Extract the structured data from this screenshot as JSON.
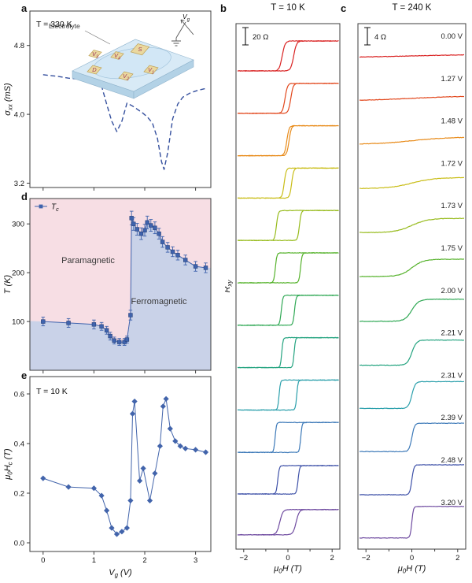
{
  "panel_letters": {
    "a": "a",
    "b": "b",
    "c": "c",
    "d": "d",
    "e": "e"
  },
  "chart_data": [
    {
      "id": "a",
      "type": "line",
      "panel": "a",
      "annotation": "T = 330 K",
      "ylabel": "σ_{xx} (mS)",
      "xlabel": "",
      "xlim": [
        -0.26,
        3.3
      ],
      "ylim": [
        3.15,
        5.2
      ],
      "xticks": [
        0,
        1,
        2,
        3
      ],
      "yticks": [
        [
          3.2,
          "3.2"
        ],
        [
          4,
          "4.0"
        ],
        [
          4.8,
          "4.8"
        ]
      ],
      "line_color": "#35509e",
      "line_style": "dashed",
      "x": [
        0,
        0.15,
        0.3,
        0.5,
        0.7,
        0.9,
        1.05,
        1.15,
        1.25,
        1.35,
        1.45,
        1.55,
        1.65,
        1.75,
        1.85,
        1.95,
        2.05,
        2.15,
        2.25,
        2.33,
        2.38,
        2.45,
        2.55,
        2.65,
        2.75,
        2.9,
        3.05,
        3.2
      ],
      "y": [
        4.46,
        4.45,
        4.44,
        4.42,
        4.41,
        4.4,
        4.38,
        4.33,
        4.12,
        3.92,
        3.8,
        3.92,
        4.13,
        4.1,
        4.06,
        4.02,
        3.97,
        3.9,
        3.72,
        3.45,
        3.36,
        3.55,
        3.95,
        4.12,
        4.2,
        4.25,
        4.28,
        4.3
      ],
      "inset": {
        "labels": {
          "electrolyte": "Electrolyte",
          "gate": "V_{g}",
          "source": "S",
          "drain": "D",
          "v1": "V_{1}",
          "v2": "V_{2}",
          "v3": "V_{3}",
          "v4": "V_{4}"
        },
        "slab_color": "#d8eaf6",
        "slab_side_color": "#b3d2e6",
        "pad_color": "#ead89f",
        "pad_edge": "#bfa257",
        "label_color": "#9c3558"
      }
    },
    {
      "id": "d",
      "type": "scatter",
      "panel": "d",
      "legend": "T_{c}",
      "ylabel": "T (K)",
      "xlabel": "",
      "xlim": [
        -0.26,
        3.3
      ],
      "ylim": [
        0,
        352
      ],
      "xticks": [
        0,
        1,
        2,
        3
      ],
      "yticks": [
        [
          100,
          "100"
        ],
        [
          200,
          "200"
        ],
        [
          300,
          "300"
        ]
      ],
      "marker_color": "#3f63ad",
      "regions": {
        "paramagnetic": {
          "label": "Paramagnetic",
          "color": "#f7dee4"
        },
        "ferromagnetic": {
          "label": "Ferromagnetic",
          "color": "#c9d2e8"
        }
      },
      "points": [
        [
          0,
          100,
          9
        ],
        [
          0.5,
          97,
          9
        ],
        [
          1,
          94,
          9
        ],
        [
          1.15,
          90,
          8
        ],
        [
          1.25,
          82,
          8
        ],
        [
          1.32,
          70,
          8
        ],
        [
          1.4,
          61,
          7
        ],
        [
          1.5,
          58,
          7
        ],
        [
          1.6,
          58,
          7
        ],
        [
          1.65,
          63,
          7
        ],
        [
          1.72,
          113,
          10
        ],
        [
          1.74,
          312,
          14
        ],
        [
          1.78,
          300,
          13
        ],
        [
          1.85,
          289,
          12
        ],
        [
          1.93,
          280,
          12
        ],
        [
          2,
          287,
          12
        ],
        [
          2.05,
          303,
          13
        ],
        [
          2.12,
          297,
          12
        ],
        [
          2.2,
          292,
          12
        ],
        [
          2.28,
          280,
          11
        ],
        [
          2.35,
          263,
          11
        ],
        [
          2.45,
          252,
          10
        ],
        [
          2.55,
          243,
          10
        ],
        [
          2.65,
          236,
          10
        ],
        [
          2.8,
          226,
          10
        ],
        [
          3,
          213,
          10
        ],
        [
          3.2,
          210,
          10
        ]
      ],
      "boundary": [
        [
          -0.26,
          101
        ],
        [
          0,
          100
        ],
        [
          0.5,
          97
        ],
        [
          1,
          94
        ],
        [
          1.15,
          90
        ],
        [
          1.25,
          82
        ],
        [
          1.32,
          70
        ],
        [
          1.4,
          61
        ],
        [
          1.5,
          58
        ],
        [
          1.6,
          58
        ],
        [
          1.65,
          63
        ],
        [
          1.7,
          90
        ],
        [
          1.72,
          113
        ],
        [
          1.73,
          312
        ],
        [
          1.78,
          300
        ],
        [
          1.85,
          289
        ],
        [
          1.93,
          280
        ],
        [
          2,
          287
        ],
        [
          2.05,
          303
        ],
        [
          2.12,
          297
        ],
        [
          2.2,
          292
        ],
        [
          2.28,
          280
        ],
        [
          2.35,
          263
        ],
        [
          2.45,
          252
        ],
        [
          2.55,
          243
        ],
        [
          2.65,
          236
        ],
        [
          2.8,
          226
        ],
        [
          3,
          213
        ],
        [
          3.2,
          210
        ],
        [
          3.3,
          210
        ]
      ]
    },
    {
      "id": "e",
      "type": "scatter",
      "panel": "e",
      "annotation": "T = 10 K",
      "ylabel": "μ_{0}H_{c} (T)",
      "xlabel": "V_{g} (V)",
      "xlim": [
        -0.26,
        3.3
      ],
      "ylim": [
        -0.035,
        0.67
      ],
      "xticks": [
        [
          0,
          "0"
        ],
        [
          1,
          "1"
        ],
        [
          2,
          "2"
        ],
        [
          3,
          "3"
        ]
      ],
      "yticks": [
        [
          0,
          "0.0"
        ],
        [
          0.2,
          "0.2"
        ],
        [
          0.4,
          "0.4"
        ],
        [
          0.6,
          "0.6"
        ]
      ],
      "marker_color": "#4264ab",
      "points": [
        [
          0,
          0.26
        ],
        [
          0.5,
          0.225
        ],
        [
          1,
          0.22
        ],
        [
          1.15,
          0.19
        ],
        [
          1.25,
          0.13
        ],
        [
          1.35,
          0.06
        ],
        [
          1.45,
          0.035
        ],
        [
          1.55,
          0.045
        ],
        [
          1.65,
          0.06
        ],
        [
          1.72,
          0.17
        ],
        [
          1.76,
          0.52
        ],
        [
          1.8,
          0.57
        ],
        [
          1.9,
          0.25
        ],
        [
          1.97,
          0.3
        ],
        [
          2.1,
          0.17
        ],
        [
          2.2,
          0.28
        ],
        [
          2.3,
          0.39
        ],
        [
          2.36,
          0.55
        ],
        [
          2.42,
          0.58
        ],
        [
          2.5,
          0.46
        ],
        [
          2.6,
          0.41
        ],
        [
          2.7,
          0.39
        ],
        [
          2.8,
          0.38
        ],
        [
          3,
          0.375
        ],
        [
          3.2,
          0.365
        ]
      ]
    },
    {
      "id": "b",
      "type": "line",
      "subtype": "hysteresis-stack",
      "panel": "b",
      "title": "T = 10 K",
      "ylabel": "R_{xy}",
      "xlabel": "μ_{0}H (T)",
      "scalebar": "20 Ω",
      "xlim": [
        -2.35,
        2.35
      ],
      "xticks": [
        [
          -2,
          "−2"
        ],
        [
          0,
          "0"
        ],
        [
          2,
          "2"
        ]
      ],
      "xticks_minor": [
        -1,
        1
      ],
      "curves": [
        {
          "voltage": "0.00 V",
          "color": "#d92121",
          "hc": 0.26,
          "w": 0.13,
          "amp": 19
        },
        {
          "voltage": "1.27 V",
          "color": "#e2471c",
          "hc": 0.13,
          "w": 0.11,
          "amp": 19
        },
        {
          "voltage": "1.48 V",
          "color": "#e88b1a",
          "hc": 0.05,
          "w": 0.1,
          "amp": 19
        },
        {
          "voltage": "1.72 V",
          "color": "#c9bd17",
          "hc": 0.17,
          "w": 0.09,
          "amp": 19
        },
        {
          "voltage": "1.73 V",
          "color": "#97bb1c",
          "hc": 0.52,
          "w": 0.08,
          "amp": 19
        },
        {
          "voltage": "1.75 V",
          "color": "#55b22b",
          "hc": 0.57,
          "w": 0.07,
          "amp": 19
        },
        {
          "voltage": "2.00 V",
          "color": "#2fa854",
          "hc": 0.3,
          "w": 0.07,
          "amp": 19
        },
        {
          "voltage": "2.21 V",
          "color": "#23a37f",
          "hc": 0.28,
          "w": 0.06,
          "amp": 19
        },
        {
          "voltage": "2.31 V",
          "color": "#2a9fab",
          "hc": 0.4,
          "w": 0.06,
          "amp": 19
        },
        {
          "voltage": "2.39 V",
          "color": "#3c79b8",
          "hc": 0.58,
          "w": 0.06,
          "amp": 19
        },
        {
          "voltage": "2.48 V",
          "color": "#3e51a8",
          "hc": 0.46,
          "w": 0.07,
          "amp": 18
        },
        {
          "voltage": "3.20 V",
          "color": "#6f4ba0",
          "hc": 0.37,
          "w": 0.14,
          "amp": 16
        }
      ]
    },
    {
      "id": "c",
      "type": "line",
      "subtype": "sigmoid-stack",
      "panel": "c",
      "title": "T = 240 K",
      "xlabel": "μ_{0}H (T)",
      "scalebar": "4 Ω",
      "xlim": [
        -2.35,
        2.35
      ],
      "xticks": [
        [
          -2,
          "−2"
        ],
        [
          0,
          "0"
        ],
        [
          2,
          "2"
        ]
      ],
      "xticks_minor": [
        -1,
        1
      ],
      "curves": [
        {
          "voltage": "0.00 V",
          "color": "#d92121",
          "amp": 2.2,
          "w": 3
        },
        {
          "voltage": "1.27 V",
          "color": "#e2471c",
          "amp": 3,
          "w": 2.2
        },
        {
          "voltage": "1.48 V",
          "color": "#e88b1a",
          "amp": 4.5,
          "w": 1.5
        },
        {
          "voltage": "1.72 V",
          "color": "#c9bd17",
          "amp": 7,
          "w": 1
        },
        {
          "voltage": "1.73 V",
          "color": "#97bb1c",
          "amp": 9,
          "w": 0.7
        },
        {
          "voltage": "1.75 V",
          "color": "#55b22b",
          "amp": 11,
          "w": 0.5
        },
        {
          "voltage": "2.00 V",
          "color": "#2fa854",
          "amp": 14,
          "w": 0.3
        },
        {
          "voltage": "2.21 V",
          "color": "#23a37f",
          "amp": 16,
          "w": 0.2
        },
        {
          "voltage": "2.31 V",
          "color": "#2a9fab",
          "amp": 17,
          "w": 0.15
        },
        {
          "voltage": "2.39 V",
          "color": "#3c79b8",
          "amp": 18,
          "w": 0.12
        },
        {
          "voltage": "2.48 V",
          "color": "#3e51a8",
          "amp": 19,
          "w": 0.09
        },
        {
          "voltage": "3.20 V",
          "color": "#6f4ba0",
          "amp": 20,
          "w": 0.07
        }
      ]
    }
  ]
}
